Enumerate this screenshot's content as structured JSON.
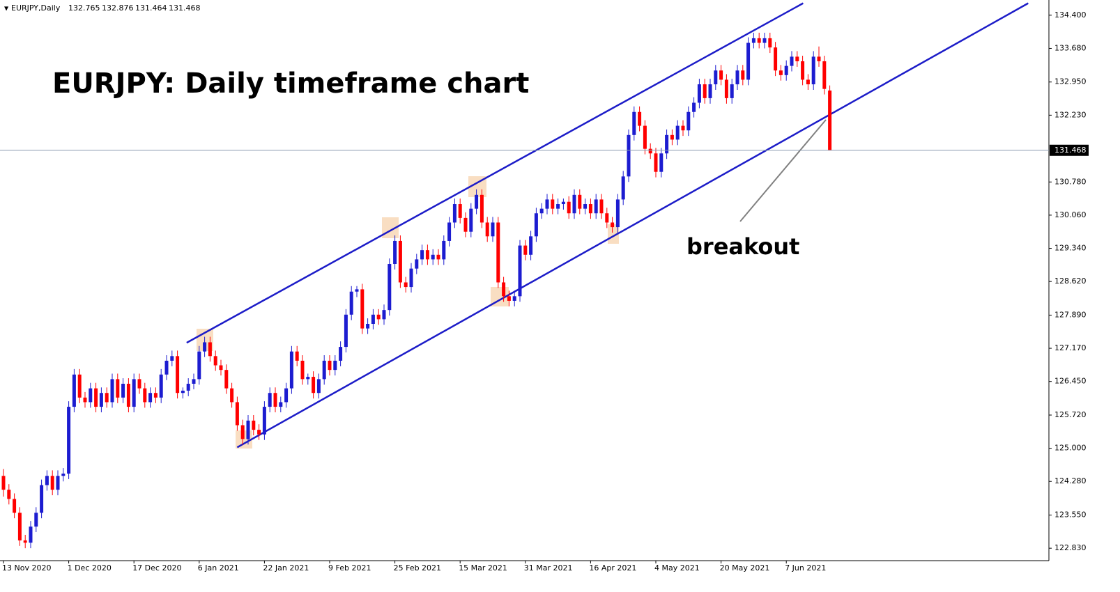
{
  "chart_data": {
    "type": "candlestick",
    "symbol": "EURJPY,Daily",
    "title": "EURJPY: Daily timeframe chart",
    "annotation": "breakout",
    "up_color": "#1c1cd0",
    "down_color": "#ff0000",
    "price_line_color": "#8a9bb0",
    "ylim": [
      122.56,
      134.73
    ],
    "yticks": [
      {
        "value": 122.83,
        "label": "122.830"
      },
      {
        "value": 123.55,
        "label": "123.550"
      },
      {
        "value": 124.28,
        "label": "124.280"
      },
      {
        "value": 125,
        "label": "125.000"
      },
      {
        "value": 125.72,
        "label": "125.720"
      },
      {
        "value": 126.45,
        "label": "126.450"
      },
      {
        "value": 127.17,
        "label": "127.170"
      },
      {
        "value": 127.89,
        "label": "127.890"
      },
      {
        "value": 128.62,
        "label": "128.620"
      },
      {
        "value": 129.34,
        "label": "129.340"
      },
      {
        "value": 130.06,
        "label": "130.060"
      },
      {
        "value": 130.78,
        "label": "130.780"
      },
      {
        "value": 132.23,
        "label": "132.230"
      },
      {
        "value": 132.95,
        "label": "132.950"
      },
      {
        "value": 133.68,
        "label": "133.680"
      },
      {
        "value": 134.4,
        "label": "134.400"
      }
    ],
    "categories": [
      "13 Nov 2020",
      null,
      null,
      null,
      null,
      null,
      null,
      null,
      null,
      null,
      null,
      null,
      "1 Dec 2020",
      null,
      null,
      null,
      null,
      null,
      null,
      null,
      null,
      null,
      null,
      null,
      "17 Dec 2020",
      null,
      null,
      null,
      null,
      null,
      null,
      null,
      null,
      null,
      null,
      null,
      "6 Jan 2021",
      null,
      null,
      null,
      null,
      null,
      null,
      null,
      null,
      null,
      null,
      null,
      "22 Jan 2021",
      null,
      null,
      null,
      null,
      null,
      null,
      null,
      null,
      null,
      null,
      null,
      "9 Feb 2021",
      null,
      null,
      null,
      null,
      null,
      null,
      null,
      null,
      null,
      null,
      null,
      "25 Feb 2021",
      null,
      null,
      null,
      null,
      null,
      null,
      null,
      null,
      null,
      null,
      null,
      "15 Mar 2021",
      null,
      null,
      null,
      null,
      null,
      null,
      null,
      null,
      null,
      null,
      null,
      "31 Mar 2021",
      null,
      null,
      null,
      null,
      null,
      null,
      null,
      null,
      null,
      null,
      null,
      "16 Apr 2021",
      null,
      null,
      null,
      null,
      null,
      null,
      null,
      null,
      null,
      null,
      null,
      "4 May 2021",
      null,
      null,
      null,
      null,
      null,
      null,
      null,
      null,
      null,
      null,
      null,
      "20 May 2021",
      null,
      null,
      null,
      null,
      null,
      null,
      null,
      null,
      null,
      null,
      null,
      "7 Jun 2021",
      null,
      null,
      null,
      null,
      null,
      null,
      null,
      null
    ],
    "candles": [
      [
        124.4,
        124.55,
        123.95,
        124.1
      ],
      [
        124.1,
        124.22,
        123.78,
        123.9
      ],
      [
        123.9,
        124.02,
        123.48,
        123.6
      ],
      [
        123.6,
        123.72,
        122.88,
        123.0
      ],
      [
        123.0,
        123.12,
        122.83,
        122.95
      ],
      [
        122.95,
        123.42,
        122.83,
        123.3
      ],
      [
        123.3,
        123.72,
        123.18,
        123.6
      ],
      [
        123.6,
        124.32,
        123.48,
        124.2
      ],
      [
        124.2,
        124.52,
        124.08,
        124.4
      ],
      [
        124.4,
        124.52,
        123.98,
        124.1
      ],
      [
        124.1,
        124.52,
        123.98,
        124.4
      ],
      [
        124.4,
        124.57,
        124.28,
        124.45
      ],
      [
        124.45,
        126.02,
        124.33,
        125.9
      ],
      [
        125.9,
        126.72,
        125.78,
        126.6
      ],
      [
        126.6,
        126.72,
        125.98,
        126.1
      ],
      [
        126.1,
        126.22,
        125.88,
        126.0
      ],
      [
        126.0,
        126.42,
        125.88,
        126.3
      ],
      [
        126.3,
        126.42,
        125.78,
        125.9
      ],
      [
        125.9,
        126.32,
        125.78,
        126.2
      ],
      [
        126.2,
        126.32,
        125.88,
        126.0
      ],
      [
        126.0,
        126.62,
        125.88,
        126.5
      ],
      [
        126.5,
        126.62,
        125.98,
        126.1
      ],
      [
        126.1,
        126.52,
        125.98,
        126.4
      ],
      [
        126.4,
        126.52,
        125.78,
        125.9
      ],
      [
        125.9,
        126.62,
        125.78,
        126.5
      ],
      [
        126.5,
        126.62,
        126.18,
        126.3
      ],
      [
        126.3,
        126.42,
        125.88,
        126.0
      ],
      [
        126.0,
        126.32,
        125.88,
        126.2
      ],
      [
        126.2,
        126.32,
        125.98,
        126.1
      ],
      [
        126.1,
        126.72,
        125.98,
        126.6
      ],
      [
        126.6,
        127.02,
        126.48,
        126.9
      ],
      [
        126.9,
        127.12,
        126.78,
        127.0
      ],
      [
        127.0,
        127.12,
        126.08,
        126.2
      ],
      [
        126.2,
        126.32,
        126.08,
        126.25
      ],
      [
        126.25,
        126.52,
        126.13,
        126.4
      ],
      [
        126.4,
        126.62,
        126.28,
        126.5
      ],
      [
        126.5,
        127.22,
        126.38,
        127.1
      ],
      [
        127.1,
        127.42,
        126.98,
        127.3
      ],
      [
        127.3,
        127.42,
        126.88,
        127.0
      ],
      [
        127.0,
        127.12,
        126.68,
        126.8
      ],
      [
        126.8,
        126.92,
        126.58,
        126.7
      ],
      [
        126.7,
        126.82,
        126.18,
        126.3
      ],
      [
        126.3,
        126.42,
        125.88,
        126.0
      ],
      [
        126.0,
        126.12,
        125.38,
        125.5
      ],
      [
        125.5,
        125.62,
        125.08,
        125.2
      ],
      [
        125.2,
        125.72,
        125.08,
        125.6
      ],
      [
        125.6,
        125.72,
        125.28,
        125.4
      ],
      [
        125.4,
        125.52,
        125.18,
        125.3
      ],
      [
        125.3,
        126.02,
        125.18,
        125.9
      ],
      [
        125.9,
        126.32,
        125.78,
        126.2
      ],
      [
        126.2,
        126.32,
        125.78,
        125.9
      ],
      [
        125.9,
        126.12,
        125.78,
        126.0
      ],
      [
        126.0,
        126.42,
        125.88,
        126.3
      ],
      [
        126.3,
        127.22,
        126.18,
        127.1
      ],
      [
        127.1,
        127.22,
        126.78,
        126.9
      ],
      [
        126.9,
        127.02,
        126.38,
        126.5
      ],
      [
        126.5,
        126.62,
        126.38,
        126.55
      ],
      [
        126.55,
        126.67,
        126.08,
        126.2
      ],
      [
        126.2,
        126.62,
        126.08,
        126.5
      ],
      [
        126.5,
        127.02,
        126.38,
        126.9
      ],
      [
        126.9,
        127.02,
        126.58,
        126.7
      ],
      [
        126.7,
        127.02,
        126.58,
        126.9
      ],
      [
        126.9,
        127.32,
        126.78,
        127.2
      ],
      [
        127.2,
        128.02,
        127.08,
        127.9
      ],
      [
        127.9,
        128.52,
        127.78,
        128.4
      ],
      [
        128.4,
        128.52,
        128.28,
        128.45
      ],
      [
        128.45,
        128.57,
        127.48,
        127.6
      ],
      [
        127.6,
        127.82,
        127.48,
        127.7
      ],
      [
        127.7,
        128.02,
        127.58,
        127.9
      ],
      [
        127.9,
        128.02,
        127.68,
        127.8
      ],
      [
        127.8,
        128.12,
        127.68,
        128.0
      ],
      [
        128.0,
        129.12,
        127.88,
        129.0
      ],
      [
        129.0,
        129.62,
        128.88,
        129.5
      ],
      [
        129.5,
        129.62,
        128.48,
        128.6
      ],
      [
        128.6,
        128.72,
        128.38,
        128.5
      ],
      [
        128.5,
        129.02,
        128.38,
        128.9
      ],
      [
        128.9,
        129.22,
        128.78,
        129.1
      ],
      [
        129.1,
        129.42,
        128.98,
        129.3
      ],
      [
        129.3,
        129.42,
        128.98,
        129.1
      ],
      [
        129.1,
        129.32,
        128.98,
        129.2
      ],
      [
        129.2,
        129.32,
        128.98,
        129.1
      ],
      [
        129.1,
        129.62,
        128.98,
        129.5
      ],
      [
        129.5,
        130.02,
        129.38,
        129.9
      ],
      [
        129.9,
        130.42,
        129.78,
        130.3
      ],
      [
        130.3,
        130.42,
        129.88,
        130.0
      ],
      [
        130.0,
        130.12,
        129.58,
        129.7
      ],
      [
        129.7,
        130.32,
        129.58,
        130.2
      ],
      [
        130.2,
        130.62,
        130.08,
        130.5
      ],
      [
        130.5,
        130.62,
        129.78,
        129.9
      ],
      [
        129.9,
        130.02,
        129.48,
        129.6
      ],
      [
        129.6,
        130.02,
        129.48,
        129.9
      ],
      [
        129.9,
        130.02,
        128.48,
        128.6
      ],
      [
        128.6,
        128.72,
        128.18,
        128.3
      ],
      [
        128.3,
        128.42,
        128.08,
        128.2
      ],
      [
        128.2,
        128.42,
        128.08,
        128.3
      ],
      [
        128.3,
        129.52,
        128.18,
        129.4
      ],
      [
        129.4,
        129.52,
        129.08,
        129.2
      ],
      [
        129.2,
        129.72,
        129.08,
        129.6
      ],
      [
        129.6,
        130.22,
        129.48,
        130.1
      ],
      [
        130.1,
        130.32,
        129.98,
        130.2
      ],
      [
        130.2,
        130.52,
        130.08,
        130.4
      ],
      [
        130.4,
        130.52,
        130.08,
        130.2
      ],
      [
        130.2,
        130.42,
        130.08,
        130.3
      ],
      [
        130.3,
        130.42,
        130.18,
        130.35
      ],
      [
        130.35,
        130.47,
        129.98,
        130.1
      ],
      [
        130.1,
        130.62,
        129.98,
        130.5
      ],
      [
        130.5,
        130.62,
        130.08,
        130.2
      ],
      [
        130.2,
        130.42,
        130.08,
        130.3
      ],
      [
        130.3,
        130.42,
        129.98,
        130.1
      ],
      [
        130.1,
        130.52,
        129.98,
        130.4
      ],
      [
        130.4,
        130.52,
        129.98,
        130.1
      ],
      [
        130.1,
        130.22,
        129.78,
        129.9
      ],
      [
        129.9,
        130.02,
        129.68,
        129.8
      ],
      [
        129.8,
        130.52,
        129.68,
        130.4
      ],
      [
        130.4,
        131.02,
        130.28,
        130.9
      ],
      [
        130.9,
        131.92,
        130.78,
        131.8
      ],
      [
        131.8,
        132.42,
        131.68,
        132.3
      ],
      [
        132.3,
        132.42,
        131.88,
        132.0
      ],
      [
        132.0,
        132.12,
        131.38,
        131.5
      ],
      [
        131.5,
        131.62,
        131.28,
        131.4
      ],
      [
        131.4,
        131.52,
        130.88,
        131.0
      ],
      [
        131.0,
        131.52,
        130.88,
        131.4
      ],
      [
        131.4,
        131.92,
        131.28,
        131.8
      ],
      [
        131.8,
        131.92,
        131.58,
        131.7
      ],
      [
        131.7,
        132.12,
        131.58,
        132.0
      ],
      [
        132.0,
        132.12,
        131.78,
        131.9
      ],
      [
        131.9,
        132.42,
        131.78,
        132.3
      ],
      [
        132.3,
        132.62,
        132.18,
        132.5
      ],
      [
        132.5,
        133.02,
        132.38,
        132.9
      ],
      [
        132.9,
        133.02,
        132.48,
        132.6
      ],
      [
        132.6,
        133.02,
        132.48,
        132.9
      ],
      [
        132.9,
        133.32,
        132.78,
        133.2
      ],
      [
        133.2,
        133.32,
        132.88,
        133.0
      ],
      [
        133.0,
        133.12,
        132.48,
        132.6
      ],
      [
        132.6,
        133.02,
        132.48,
        132.9
      ],
      [
        132.9,
        133.32,
        132.78,
        133.2
      ],
      [
        133.2,
        133.32,
        132.88,
        133.0
      ],
      [
        133.0,
        133.92,
        132.88,
        133.8
      ],
      [
        133.8,
        134.02,
        133.68,
        133.9
      ],
      [
        133.9,
        134.02,
        133.68,
        133.8
      ],
      [
        133.8,
        134.02,
        133.68,
        133.9
      ],
      [
        133.9,
        134.02,
        133.58,
        133.7
      ],
      [
        133.7,
        133.82,
        133.08,
        133.2
      ],
      [
        133.2,
        133.32,
        132.98,
        133.1
      ],
      [
        133.1,
        133.42,
        132.98,
        133.3
      ],
      [
        133.3,
        133.62,
        133.18,
        133.5
      ],
      [
        133.5,
        133.62,
        133.28,
        133.4
      ],
      [
        133.4,
        133.52,
        132.88,
        133.0
      ],
      [
        133.0,
        133.12,
        132.78,
        132.9
      ],
      [
        132.9,
        133.62,
        132.78,
        133.5
      ],
      [
        133.5,
        133.72,
        133.28,
        133.4
      ],
      [
        133.4,
        133.52,
        132.68,
        132.8
      ],
      [
        132.765,
        132.876,
        131.464,
        131.468
      ]
    ],
    "trendlines": [
      {
        "color": "#1c1cc8",
        "points": [
          [
            33.7,
            127.29
          ],
          [
            147.1,
            134.66
          ]
        ]
      },
      {
        "color": "#1c1cc8",
        "points": [
          [
            43.0,
            125.02
          ],
          [
            188.5,
            134.66
          ]
        ]
      }
    ]
  }
}
